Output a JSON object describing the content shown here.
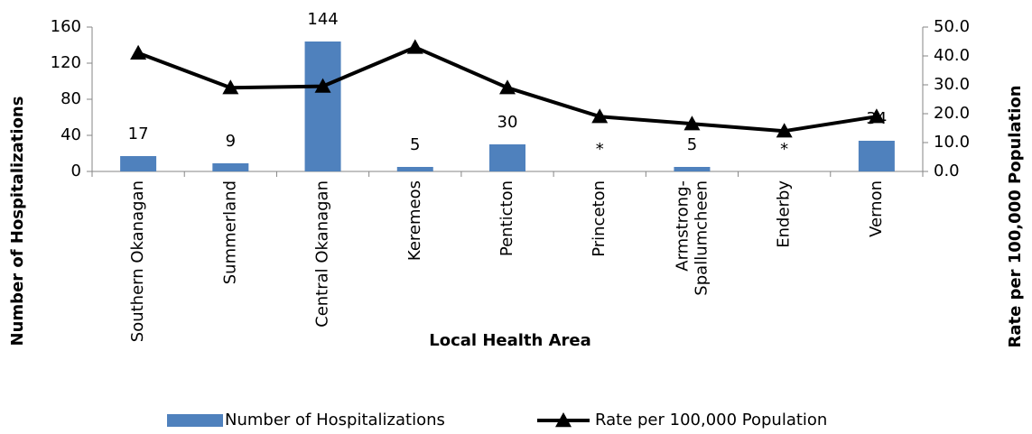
{
  "chart_data": {
    "type": "bar",
    "x_label": "Local Health Area",
    "y_label": "Number of Hospitalizations",
    "y2_label": "Rate per 100,000 Population",
    "categories": [
      "Southern Okanagan",
      "Summerland",
      "Central Okanagan",
      "Keremeos",
      "Penticton",
      "Princeton",
      "Armstrong-Spallumcheen",
      "Enderby",
      "Vernon"
    ],
    "series": [
      {
        "name": "Number of Hospitalizations",
        "type": "bar",
        "color": "#4f81bd",
        "values": [
          17,
          9,
          144,
          5,
          30,
          null,
          5,
          null,
          34
        ],
        "value_labels": [
          "17",
          "9",
          "144",
          "5",
          "30",
          "*",
          "5",
          "*",
          "34"
        ]
      },
      {
        "name": "Rate per 100,000 Population",
        "type": "line",
        "axis": "y2",
        "color": "#000000",
        "values": [
          41,
          29,
          29.5,
          43,
          29,
          19,
          16.5,
          14,
          19
        ]
      }
    ],
    "ylim": [
      0,
      160
    ],
    "yticks": [
      0,
      40,
      80,
      120,
      160
    ],
    "y2lim": [
      0,
      50
    ],
    "y2ticks": [
      {
        "value": 0,
        "label": "0.0"
      },
      {
        "value": 10,
        "label": "10.0"
      },
      {
        "value": 20,
        "label": "20.0"
      },
      {
        "value": 30,
        "label": "30.0"
      },
      {
        "value": 40,
        "label": "40.0"
      },
      {
        "value": 50,
        "label": "50.0"
      }
    ],
    "legend": "bottom"
  }
}
